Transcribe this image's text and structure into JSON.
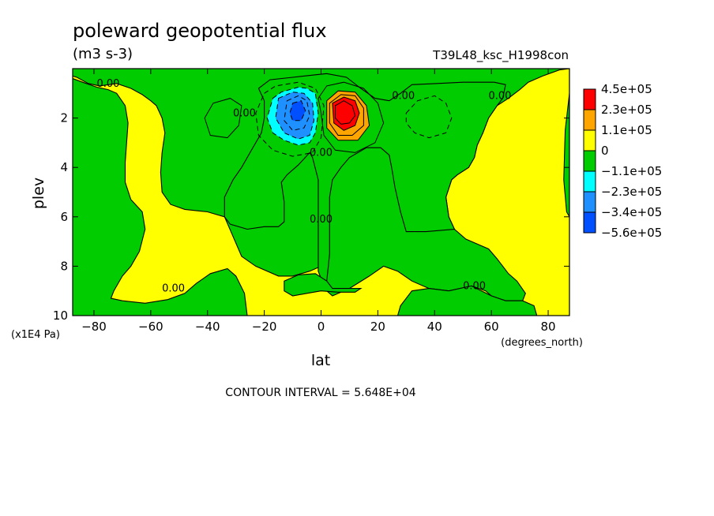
{
  "chart_data": {
    "type": "heatmap",
    "title": "poleward geopotential flux",
    "units": "(m3 s-3)",
    "run_label": "T39L48_ksc_H1998con",
    "xlabel": "lat",
    "ylabel": "plev",
    "x_units": "(degrees_north)",
    "y_units": "(x1E4 Pa)",
    "xlim": [
      -87.5,
      87.5
    ],
    "ylim": [
      10,
      0
    ],
    "x_ticks": [
      -80,
      -60,
      -40,
      -20,
      0,
      20,
      40,
      60,
      80
    ],
    "y_ticks": [
      2,
      4,
      6,
      8,
      10
    ],
    "contour_interval_text": "CONTOUR INTERVAL = 5.648E+04",
    "zero_contour_label": "0.00",
    "zero_label_positions": [
      {
        "lat": -75,
        "plev": 0.6
      },
      {
        "lat": -52,
        "plev": 8.9
      },
      {
        "lat": -27,
        "plev": 1.8
      },
      {
        "lat": 0,
        "plev": 3.4
      },
      {
        "lat": 0,
        "plev": 6.1
      },
      {
        "lat": 29,
        "plev": 1.1
      },
      {
        "lat": 63,
        "plev": 1.1
      },
      {
        "lat": 54,
        "plev": 8.8
      }
    ],
    "colorbar": {
      "labels": [
        "4.5e+05",
        "2.3e+05",
        "1.1e+05",
        "0",
        "−1.1e+05",
        "−2.3e+05",
        "−3.4e+05",
        "−5.6e+05"
      ],
      "colors": [
        "#ff0000",
        "#ffa500",
        "#ffff00",
        "#00cc00",
        "#00ffff",
        "#1e90ff",
        "#0050ff"
      ]
    },
    "positive_region_polygons": [
      [
        [
          -87.5,
          0
        ],
        [
          -87.5,
          0.3
        ],
        [
          -86,
          0.35
        ],
        [
          -82,
          0.6
        ],
        [
          -78,
          0.7
        ],
        [
          -72,
          0.6
        ],
        [
          -67,
          0.8
        ],
        [
          -63,
          1.05
        ],
        [
          -60,
          1.3
        ],
        [
          -58,
          1.5
        ],
        [
          -56,
          2.0
        ],
        [
          -55,
          2.6
        ],
        [
          -56,
          3.4
        ],
        [
          -56.5,
          4.2
        ],
        [
          -56,
          5.0
        ],
        [
          -53,
          5.5
        ],
        [
          -48,
          5.7
        ],
        [
          -40,
          5.8
        ],
        [
          -34,
          6.0
        ],
        [
          -31,
          6.8
        ],
        [
          -28,
          7.6
        ],
        [
          -23,
          8.0
        ],
        [
          -15,
          8.4
        ],
        [
          -10,
          8.4
        ],
        [
          -4,
          8.2
        ],
        [
          0,
          8.0
        ],
        [
          1,
          8.9
        ],
        [
          4,
          9.2
        ],
        [
          10,
          8.9
        ],
        [
          17,
          8.4
        ],
        [
          22,
          8.0
        ],
        [
          27,
          8.2
        ],
        [
          32,
          8.6
        ],
        [
          38,
          8.9
        ],
        [
          45,
          9.0
        ],
        [
          53,
          8.8
        ],
        [
          58,
          9.0
        ],
        [
          60,
          9.2
        ],
        [
          65,
          9.4
        ],
        [
          71,
          9.4
        ],
        [
          72,
          9.1
        ],
        [
          69,
          8.6
        ],
        [
          66,
          8.3
        ],
        [
          62,
          7.7
        ],
        [
          59,
          7.3
        ],
        [
          55,
          7.1
        ],
        [
          51,
          6.9
        ],
        [
          47,
          6.5
        ],
        [
          45,
          6.0
        ],
        [
          44,
          5.2
        ],
        [
          46,
          4.5
        ],
        [
          48,
          4.3
        ],
        [
          52,
          4.0
        ],
        [
          54,
          3.6
        ],
        [
          55,
          3.1
        ],
        [
          57,
          2.6
        ],
        [
          59,
          2.0
        ],
        [
          62,
          1.5
        ],
        [
          66,
          1.2
        ],
        [
          70,
          0.85
        ],
        [
          73,
          0.55
        ],
        [
          78,
          0.3
        ],
        [
          84,
          0.05
        ],
        [
          87.5,
          0
        ],
        [
          87.5,
          10
        ],
        [
          -87.5,
          10
        ]
      ]
    ],
    "negative_region_polygons": [
      [
        [
          -87.5,
          0.4
        ],
        [
          -84,
          0.55
        ],
        [
          -79,
          0.75
        ],
        [
          -75,
          0.85
        ],
        [
          -72,
          1.0
        ],
        [
          -69,
          1.5
        ],
        [
          -68,
          2.2
        ],
        [
          -68.5,
          3.0
        ],
        [
          -69,
          3.8
        ],
        [
          -69,
          4.6
        ],
        [
          -67,
          5.3
        ],
        [
          -63,
          5.8
        ],
        [
          -62,
          6.5
        ],
        [
          -64,
          7.4
        ],
        [
          -67,
          8.0
        ],
        [
          -70,
          8.4
        ],
        [
          -73,
          9.0
        ],
        [
          -74,
          9.3
        ],
        [
          -70,
          9.4
        ],
        [
          -62,
          9.5
        ],
        [
          -54,
          9.35
        ],
        [
          -48,
          9.1
        ],
        [
          -44,
          8.7
        ],
        [
          -39,
          8.3
        ],
        [
          -33,
          8.1
        ],
        [
          -30,
          8.4
        ],
        [
          -27,
          9.1
        ],
        [
          -26,
          10
        ],
        [
          -87.5,
          10
        ]
      ],
      [
        [
          27,
          10
        ],
        [
          28,
          9.6
        ],
        [
          32,
          9.0
        ],
        [
          38,
          8.9
        ],
        [
          45,
          9.0
        ],
        [
          53,
          8.8
        ],
        [
          60,
          9.2
        ],
        [
          65,
          9.4
        ],
        [
          71,
          9.4
        ],
        [
          75,
          9.6
        ],
        [
          76,
          10
        ]
      ],
      [
        [
          -20,
          1.3
        ],
        [
          -22,
          0.8
        ],
        [
          -18,
          0.45
        ],
        [
          -10,
          0.35
        ],
        [
          -2,
          0.25
        ],
        [
          2,
          0.2
        ],
        [
          9,
          0.35
        ],
        [
          14,
          0.8
        ],
        [
          19,
          1.2
        ],
        [
          24,
          1.3
        ],
        [
          28,
          1.0
        ],
        [
          32,
          0.65
        ],
        [
          41,
          0.6
        ],
        [
          50,
          0.55
        ],
        [
          61,
          0.55
        ],
        [
          65,
          0.65
        ],
        [
          64,
          1.2
        ],
        [
          62,
          1.5
        ],
        [
          59,
          2.0
        ],
        [
          57,
          2.6
        ],
        [
          55,
          3.1
        ],
        [
          54,
          3.6
        ],
        [
          52,
          4.0
        ],
        [
          48,
          4.3
        ],
        [
          46,
          4.5
        ],
        [
          44,
          5.2
        ],
        [
          45,
          6.0
        ],
        [
          47,
          6.5
        ],
        [
          37,
          6.6
        ],
        [
          30,
          6.6
        ],
        [
          28,
          5.8
        ],
        [
          26,
          4.8
        ],
        [
          25,
          4.1
        ],
        [
          24,
          3.5
        ],
        [
          21,
          3.2
        ],
        [
          16,
          3.2
        ],
        [
          10,
          3.6
        ],
        [
          7,
          4.0
        ],
        [
          4,
          4.5
        ],
        [
          3,
          5.2
        ],
        [
          3,
          6.5
        ],
        [
          3,
          7.5
        ],
        [
          2,
          8.6
        ],
        [
          0,
          8.5
        ],
        [
          -1,
          8.2
        ],
        [
          -1,
          6.0
        ],
        [
          -1,
          4.5
        ],
        [
          -3,
          3.6
        ],
        [
          -4,
          3.4
        ],
        [
          -8,
          3.9
        ],
        [
          -12,
          4.3
        ],
        [
          -14,
          4.6
        ],
        [
          -13,
          5.4
        ],
        [
          -13,
          6.2
        ],
        [
          -15,
          6.4
        ],
        [
          -20,
          6.4
        ],
        [
          -26,
          6.5
        ],
        [
          -32,
          6.3
        ],
        [
          -34,
          6.0
        ],
        [
          -34,
          5.2
        ],
        [
          -31,
          4.5
        ],
        [
          -28,
          4.0
        ],
        [
          -25,
          3.4
        ],
        [
          -23,
          3.0
        ],
        [
          -21,
          2.6
        ],
        [
          -20,
          2.0
        ]
      ],
      [
        [
          -13,
          8.6
        ],
        [
          -8,
          8.35
        ],
        [
          -2,
          8.3
        ],
        [
          2,
          8.6
        ],
        [
          4,
          8.9
        ],
        [
          10,
          8.9
        ],
        [
          14,
          8.9
        ],
        [
          12,
          9.05
        ],
        [
          6,
          9.05
        ],
        [
          0,
          9.0
        ],
        [
          -5,
          9.1
        ],
        [
          -10,
          9.2
        ],
        [
          -13,
          9.0
        ]
      ],
      [
        [
          87.5,
          1.0
        ],
        [
          86,
          2.5
        ],
        [
          85.5,
          4.5
        ],
        [
          86.5,
          5.8
        ],
        [
          87.5,
          6.0
        ]
      ]
    ],
    "contour_lines": [
      {
        "type": "negative",
        "points": [
          [
            -17,
            1.2
          ],
          [
            -14,
            0.95
          ],
          [
            -8,
            0.75
          ],
          [
            -5,
            0.8
          ],
          [
            -2,
            1.0
          ],
          [
            -1,
            1.8
          ],
          [
            -2,
            2.6
          ],
          [
            -4,
            3.0
          ],
          [
            -8,
            3.1
          ],
          [
            -13,
            2.9
          ],
          [
            -17,
            2.6
          ],
          [
            -19,
            2.0
          ]
        ]
      },
      {
        "type": "negative",
        "points": [
          [
            -15,
            1.2
          ],
          [
            -10,
            0.95
          ],
          [
            -6,
            1.0
          ],
          [
            -3,
            1.4
          ],
          [
            -2.5,
            2.1
          ],
          [
            -4,
            2.7
          ],
          [
            -8,
            2.85
          ],
          [
            -13,
            2.6
          ],
          [
            -16,
            2.0
          ]
        ]
      },
      {
        "type": "negative",
        "points": [
          [
            -12,
            1.3
          ],
          [
            -8,
            1.1
          ],
          [
            -5,
            1.3
          ],
          [
            -4,
            1.9
          ],
          [
            -6,
            2.4
          ],
          [
            -10,
            2.5
          ],
          [
            -13,
            2.1
          ]
        ]
      },
      {
        "type": "negative",
        "points": [
          [
            -10,
            1.4
          ],
          [
            -7,
            1.3
          ],
          [
            -5.5,
            1.7
          ],
          [
            -7,
            2.1
          ],
          [
            -10,
            2.1
          ],
          [
            -11,
            1.8
          ]
        ]
      },
      {
        "type": "negative",
        "points": [
          [
            -20,
            1.0
          ],
          [
            -16,
            0.7
          ],
          [
            -8,
            0.55
          ],
          [
            -2,
            0.8
          ],
          [
            1,
            1.5
          ],
          [
            0,
            2.8
          ],
          [
            -3,
            3.4
          ],
          [
            -10,
            3.55
          ],
          [
            -17,
            3.3
          ],
          [
            -22,
            2.7
          ],
          [
            -23,
            1.8
          ]
        ]
      },
      {
        "type": "negative",
        "points": [
          [
            30,
            1.8
          ],
          [
            34,
            1.3
          ],
          [
            40,
            1.1
          ],
          [
            44,
            1.4
          ],
          [
            46,
            2.0
          ],
          [
            44,
            2.6
          ],
          [
            38,
            2.8
          ],
          [
            33,
            2.6
          ],
          [
            30,
            2.2
          ]
        ]
      },
      {
        "type": "positive",
        "points": [
          [
            -41,
            2.0
          ],
          [
            -38,
            1.4
          ],
          [
            -32,
            1.2
          ],
          [
            -28,
            1.5
          ],
          [
            -29,
            2.3
          ],
          [
            -33,
            2.8
          ],
          [
            -39,
            2.7
          ]
        ]
      },
      {
        "type": "positive",
        "points": [
          [
            -1,
            1.2
          ],
          [
            2,
            0.7
          ],
          [
            8,
            0.55
          ],
          [
            15,
            0.8
          ],
          [
            20,
            1.4
          ],
          [
            22,
            2.2
          ],
          [
            19,
            3.0
          ],
          [
            12,
            3.4
          ],
          [
            5,
            3.3
          ],
          [
            1,
            2.7
          ],
          [
            0,
            1.8
          ]
        ]
      },
      {
        "type": "positive",
        "points": [
          [
            2,
            1.3
          ],
          [
            6,
            0.9
          ],
          [
            12,
            0.95
          ],
          [
            16,
            1.5
          ],
          [
            17,
            2.3
          ],
          [
            13,
            2.9
          ],
          [
            6,
            2.9
          ],
          [
            2,
            2.4
          ]
        ]
      },
      {
        "type": "positive",
        "points": [
          [
            3,
            1.4
          ],
          [
            7,
            1.05
          ],
          [
            12,
            1.1
          ],
          [
            15,
            1.6
          ],
          [
            15,
            2.3
          ],
          [
            11,
            2.7
          ],
          [
            6,
            2.7
          ],
          [
            3,
            2.2
          ]
        ]
      },
      {
        "type": "positive",
        "points": [
          [
            4,
            1.4
          ],
          [
            8,
            1.15
          ],
          [
            12,
            1.3
          ],
          [
            13.5,
            1.8
          ],
          [
            12,
            2.3
          ],
          [
            8,
            2.5
          ],
          [
            4.5,
            2.2
          ]
        ]
      },
      {
        "type": "positive",
        "points": [
          [
            5,
            1.5
          ],
          [
            8,
            1.3
          ],
          [
            11,
            1.5
          ],
          [
            12,
            1.9
          ],
          [
            10,
            2.2
          ],
          [
            7,
            2.25
          ],
          [
            5,
            2.0
          ]
        ]
      }
    ]
  }
}
